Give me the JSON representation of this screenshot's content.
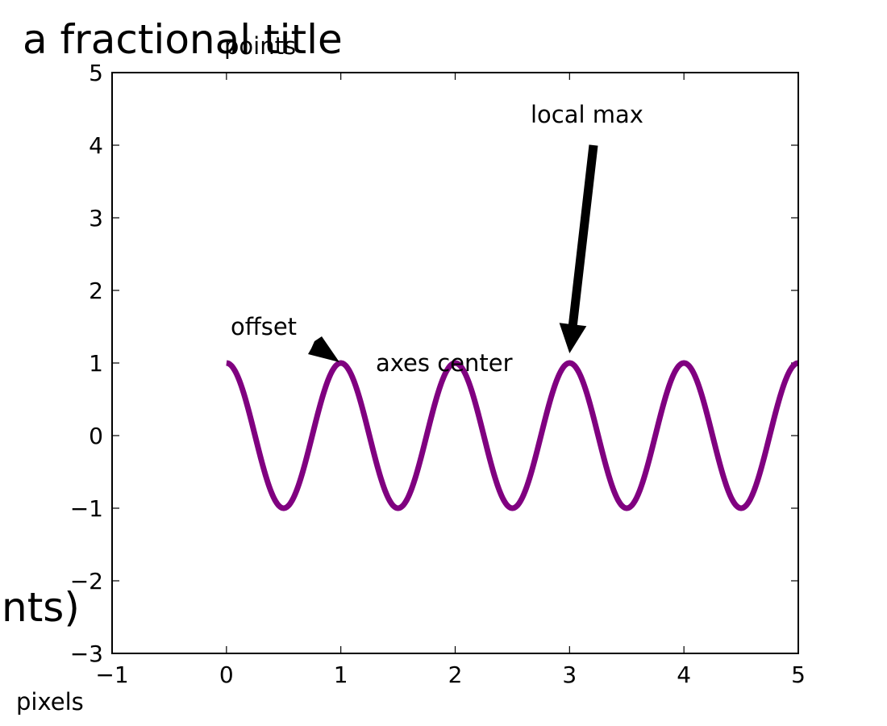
{
  "chart_data": {
    "type": "line",
    "title": "a fractional title",
    "xlim": [
      -1,
      5
    ],
    "ylim": [
      -3,
      5
    ],
    "x_ticks": [
      -1,
      0,
      1,
      2,
      3,
      4,
      5
    ],
    "y_ticks": [
      -3,
      -2,
      -1,
      0,
      1,
      2,
      3,
      4,
      5
    ],
    "x_tick_labels": [
      "−1",
      "0",
      "1",
      "2",
      "3",
      "4",
      "5"
    ],
    "y_tick_labels": [
      "−3",
      "−2",
      "−1",
      "0",
      "1",
      "2",
      "3",
      "4",
      "5"
    ],
    "grid": false,
    "series": [
      {
        "color": "#800080",
        "function": "cos(2*pi*x)",
        "x_range": [
          0,
          5
        ],
        "x": [
          0,
          0.25,
          0.5,
          0.75,
          1,
          1.25,
          1.5,
          1.75,
          2,
          2.25,
          2.5,
          2.75,
          3,
          3.25,
          3.5,
          3.75,
          4,
          4.25,
          4.5,
          4.75,
          5
        ],
        "y": [
          1,
          0,
          -1,
          0,
          1,
          0,
          -1,
          0,
          1,
          0,
          -1,
          0,
          1,
          0,
          -1,
          0,
          1,
          0,
          -1,
          0,
          1
        ]
      }
    ],
    "annotations": [
      {
        "text": "local max",
        "points_to": [
          3,
          1
        ]
      },
      {
        "text": "offset",
        "points_to": [
          1,
          1
        ]
      },
      {
        "text": "axes center"
      }
    ],
    "extra_text": {
      "points": "points",
      "pixels": "pixels",
      "clipped_points": "nts)"
    }
  }
}
